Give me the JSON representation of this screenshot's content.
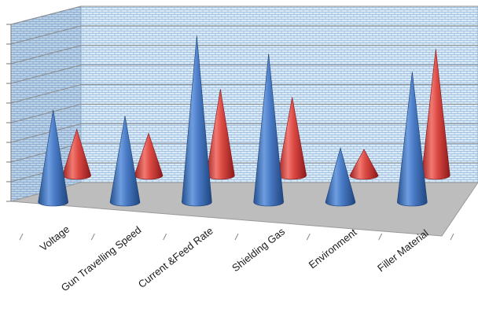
{
  "chart_data": {
    "type": "bar",
    "variant": "3d-cone",
    "title": "",
    "xlabel": "",
    "ylabel": "",
    "categories": [
      "Voltage",
      "Gun Travelling Speed",
      "Current &Feed Rate",
      "Shielding Gas",
      "Environment",
      "Filler Material"
    ],
    "series": [
      {
        "color": "#3f73c4",
        "values": [
          4.6,
          4.3,
          8.3,
          7.4,
          2.7,
          6.5
        ]
      },
      {
        "color": "#d63b3b",
        "values": [
          2.3,
          2.1,
          4.3,
          3.9,
          1.3,
          6.3
        ]
      }
    ],
    "ylim": [
      0,
      9
    ],
    "ytick_count": 9,
    "y_tick_labels_shown": false,
    "grid": true,
    "legend": "none",
    "wall_style": "brick-pattern-light-blue",
    "floor_color": "#bdbdbd"
  }
}
